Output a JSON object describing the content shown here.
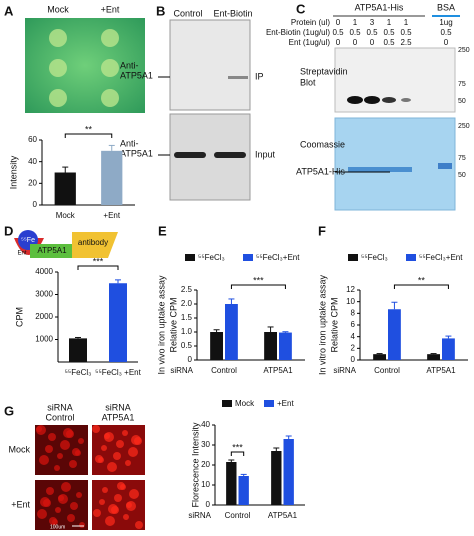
{
  "panel_labels": [
    "A",
    "B",
    "C",
    "D",
    "E",
    "F",
    "G"
  ],
  "panel_a": {
    "columns": [
      "Mock",
      "+Ent"
    ]
  },
  "panel_b": {
    "columns": [
      "Control",
      "Ent-Biotin"
    ],
    "antibody": [
      "Anti-",
      "ATP5A1"
    ],
    "rows": [
      "IP",
      "Input"
    ]
  },
  "panel_c": {
    "groups": [
      "ATP5A1-His",
      "BSA"
    ],
    "rows": [
      {
        "label": "Protein (ul)",
        "values": [
          0,
          1,
          3,
          1,
          1,
          "1ug"
        ]
      },
      {
        "label": "Ent-Biotin (1ug/ul)",
        "values": [
          0.5,
          0.5,
          0.5,
          0.5,
          0.5,
          0.5
        ]
      },
      {
        "label": "Ent (1ug/ul)",
        "values": [
          0,
          0,
          0,
          0.5,
          2.5,
          0
        ]
      }
    ],
    "blot_top": [
      "Streptavidin",
      "Blot"
    ],
    "blot_bottom": "Coomassie",
    "arrow_label": "ATP5A1-His",
    "markers_top": [
      250,
      75,
      50
    ],
    "markers_bottom": [
      250,
      75,
      50
    ]
  },
  "panel_d": {
    "fe": "⁵⁵Fe",
    "ent": "Ent",
    "protein": "ATP5A1",
    "antibody": "antibody"
  },
  "panel_g": {
    "columns": [
      [
        "siRNA",
        "Control"
      ],
      [
        "siRNA",
        "ATP5A1"
      ]
    ],
    "rows": [
      "Mock",
      "+Ent"
    ],
    "scale": "100um"
  },
  "chart_data": [
    {
      "type": "bar",
      "ylabel": "Intensity",
      "categories": [
        "Mock",
        "+Ent"
      ],
      "values": [
        30,
        50
      ],
      "errors": [
        5,
        5
      ],
      "colors": [
        "#111111",
        "#8eaac6"
      ],
      "ylim": [
        0,
        60
      ],
      "yticks": [
        0,
        20,
        40,
        60
      ],
      "annotations": [
        "**"
      ]
    },
    {
      "type": "bar",
      "ylabel": "CPM",
      "categories": [
        "⁵⁵FeCl₃",
        "⁵⁵FeCl₃ +Ent"
      ],
      "values": [
        1050,
        3500
      ],
      "errors": [
        40,
        150
      ],
      "colors": [
        "#111111",
        "#1f4fe0"
      ],
      "ylim": [
        0,
        4000
      ],
      "yticks": [
        1000,
        2000,
        3000,
        4000
      ],
      "annotations": [
        "***"
      ]
    },
    {
      "type": "bar",
      "ylabel": [
        "In vivo iron uptake assay",
        "Relative CPM"
      ],
      "xlabel": "siRNA",
      "categories": [
        "Control",
        "ATP5A1"
      ],
      "series": [
        {
          "name": "⁵⁵FeCl₃",
          "color": "#111111",
          "values": [
            1,
            1
          ],
          "errors": [
            0.08,
            0.18
          ]
        },
        {
          "name": "⁵⁵FeCl₃+Ent",
          "color": "#1f4fe0",
          "values": [
            2,
            0.98
          ],
          "errors": [
            0.18,
            0.03
          ]
        }
      ],
      "ylim": [
        0,
        2.5
      ],
      "yticks": [
        0,
        0.5,
        {
          "value": 1,
          "label": "1.0"
        },
        1.5,
        {
          "value": 2,
          "label": "2.0"
        },
        2.5
      ],
      "annotations": [
        "***"
      ]
    },
    {
      "type": "bar",
      "ylabel": [
        "In vitro iron uptake assay",
        "Relative CPM"
      ],
      "xlabel": "siRNA",
      "categories": [
        "Control",
        "ATP5A1"
      ],
      "series": [
        {
          "name": "⁵⁵FeCl₃",
          "color": "#111111",
          "values": [
            1,
            1
          ],
          "errors": [
            0.1,
            0.1
          ]
        },
        {
          "name": "⁵⁵FeCl₃+Ent",
          "color": "#1f4fe0",
          "values": [
            8.7,
            3.7
          ],
          "errors": [
            1.2,
            0.4
          ]
        }
      ],
      "ylim": [
        0,
        12
      ],
      "yticks": [
        0,
        2,
        4,
        6,
        8,
        10,
        12
      ],
      "annotations": [
        "**"
      ]
    },
    {
      "type": "bar",
      "ylabel": "Florescence Intensity",
      "xlabel": "siRNA",
      "categories": [
        "Control",
        "ATP5A1"
      ],
      "series": [
        {
          "name": "Mock",
          "color": "#111111",
          "values": [
            21.5,
            27
          ],
          "errors": [
            1,
            1.5
          ]
        },
        {
          "name": "+Ent",
          "color": "#1f4fe0",
          "values": [
            14.5,
            33
          ],
          "errors": [
            0.8,
            1.5
          ]
        }
      ],
      "ylim": [
        0,
        40
      ],
      "yticks": [
        0,
        10,
        20,
        30,
        40
      ],
      "annotations": [
        "***"
      ]
    }
  ]
}
